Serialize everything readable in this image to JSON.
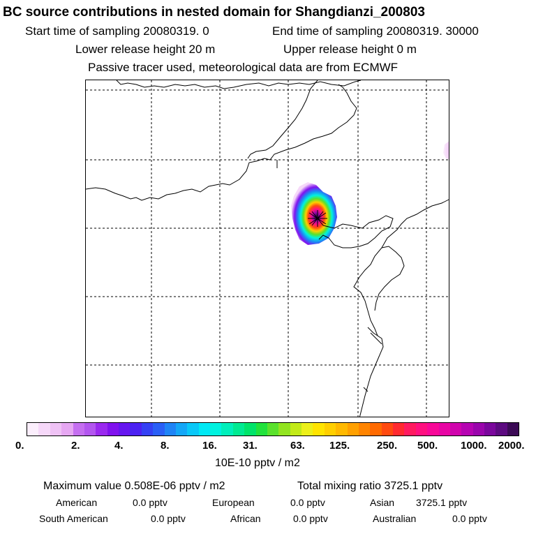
{
  "header": {
    "title": "BC  source contributions in nested domain for Shangdianzi_200803",
    "start_label": "Start time of sampling 20080319.     0",
    "end_label": "End time of sampling 20080319. 30000",
    "lower_label": "Lower release height   20 m",
    "upper_label": "Upper release height    0 m",
    "info": "Passive tracer used, meteorological data are from ECMWF"
  },
  "colorbar": {
    "colors": [
      "#fbeefc",
      "#f6d8f9",
      "#efc2f5",
      "#e6a7f2",
      "#c56ff0",
      "#b356ef",
      "#9a29ef",
      "#8012ee",
      "#6616ef",
      "#4c22f2",
      "#3541f4",
      "#2a5ff6",
      "#1f84f6",
      "#14a7f7",
      "#0ac8f8",
      "#00e9f5",
      "#00f2df",
      "#00efbb",
      "#00ea92",
      "#00e46a",
      "#21e23c",
      "#5ae12c",
      "#92e420",
      "#c2ea18",
      "#ecf01a",
      "#ffe400",
      "#ffcf00",
      "#ffb900",
      "#ffa000",
      "#ff8400",
      "#ff6a00",
      "#ff4a10",
      "#ff2a30",
      "#ff1a60",
      "#ff1080",
      "#f80898",
      "#e805a4",
      "#d004ad",
      "#b604b2",
      "#9a05ac",
      "#7a079c",
      "#5c0a80",
      "#3b0a55"
    ],
    "tick_labels": [
      "0.",
      "2.",
      "4.",
      "8.",
      "16.",
      "31.",
      "63.",
      "125.",
      "250.",
      "500.",
      "1000.",
      "2000."
    ],
    "units": "10E-10 pptv / m2"
  },
  "summary": {
    "max_label": "Maximum value  0.508E-06 pptv / m2",
    "total_label": "Total mixing ratio     3725.1 pptv"
  },
  "regions": [
    {
      "name": "American",
      "value": "0.0 pptv"
    },
    {
      "name": "European",
      "value": "0.0 pptv"
    },
    {
      "name": "Asian",
      "value": "3725.1 pptv"
    },
    {
      "name": "South American",
      "value": "0.0 pptv"
    },
    {
      "name": "African",
      "value": "0.0 pptv"
    },
    {
      "name": "Australian",
      "value": "0.0 pptv"
    }
  ]
}
